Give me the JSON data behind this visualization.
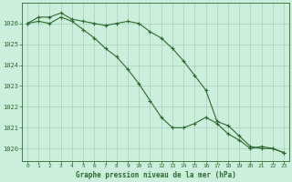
{
  "x": [
    0,
    1,
    2,
    3,
    4,
    5,
    6,
    7,
    8,
    9,
    10,
    11,
    12,
    13,
    14,
    15,
    16,
    17,
    18,
    19,
    20,
    21,
    22,
    23
  ],
  "series1": [
    1026.0,
    1026.3,
    1026.3,
    1026.5,
    1026.2,
    1026.1,
    1026.0,
    1025.9,
    1026.0,
    1026.1,
    1026.0,
    1025.6,
    1025.3,
    1024.8,
    1024.2,
    1023.5,
    1022.8,
    1021.3,
    1021.1,
    1020.6,
    1020.1,
    1020.0,
    1020.0,
    1019.8
  ],
  "series2": [
    1026.0,
    1026.1,
    1026.0,
    1026.3,
    1026.1,
    1025.7,
    1025.3,
    1024.8,
    1024.4,
    1023.8,
    1023.1,
    1022.3,
    1021.5,
    1021.0,
    1021.0,
    1021.2,
    1021.5,
    1021.2,
    1020.7,
    1020.4,
    1020.0,
    1020.1,
    1020.0,
    1019.8
  ],
  "background_color": "#cceedd",
  "grid_color": "#aaccbb",
  "line_color": "#2d6a2d",
  "xlabel": "Graphe pression niveau de la mer (hPa)",
  "ylim": [
    1019.4,
    1027.0
  ],
  "yticks": [
    1020,
    1021,
    1022,
    1023,
    1024,
    1025,
    1026
  ],
  "xticks": [
    0,
    1,
    2,
    3,
    4,
    5,
    6,
    7,
    8,
    9,
    10,
    11,
    12,
    13,
    14,
    15,
    16,
    17,
    18,
    19,
    20,
    21,
    22,
    23
  ]
}
